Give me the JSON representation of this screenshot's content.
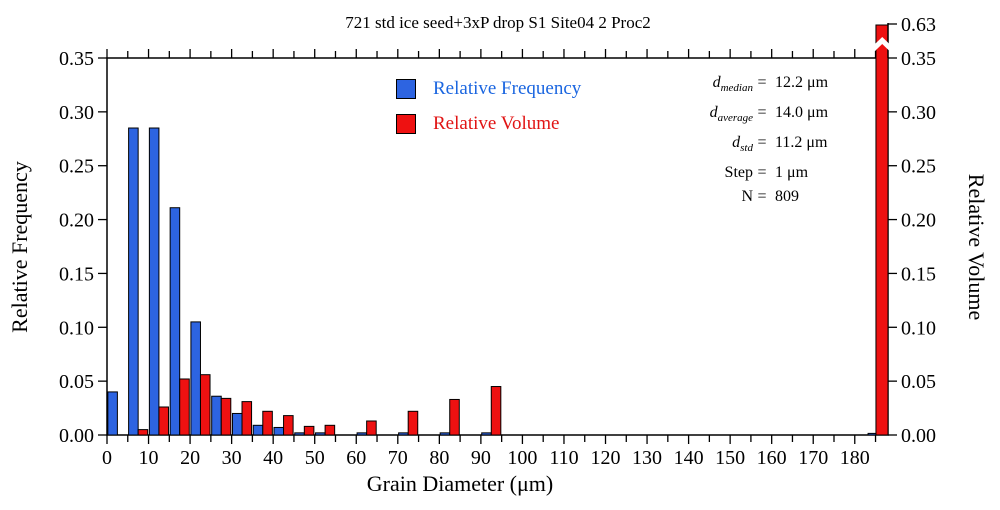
{
  "title": "721 std ice seed+3xP drop S1 Site04 2 Proc2",
  "axes": {
    "x_label": "Grain Diameter (μm)",
    "y_left_label": "Relative Frequency",
    "y_right_label": "Relative Volume"
  },
  "legend": {
    "items": [
      {
        "label": "Relative Frequency",
        "color": "#2d64e1",
        "text_color": "#1b66e0"
      },
      {
        "label": "Relative Volume",
        "color": "#ee1111",
        "text_color": "#e11414"
      }
    ]
  },
  "stats": {
    "lines": [
      {
        "name": "d",
        "name_style": "italic",
        "sub": "median",
        "eq": "=",
        "value": "12.2 μm"
      },
      {
        "name": "d",
        "name_style": "italic",
        "sub": "average",
        "eq": "=",
        "value": "14.0 μm"
      },
      {
        "name": "d",
        "name_style": "italic",
        "sub": "std",
        "eq": "=",
        "value": "11.2 μm"
      },
      {
        "name": "Step",
        "name_style": "roman",
        "sub": "",
        "eq": "=",
        "value": "1 μm"
      },
      {
        "name": "N",
        "name_style": "roman",
        "sub": "",
        "eq": "=",
        "value": "809"
      }
    ]
  },
  "colors": {
    "frequency": "#2d64e1",
    "volume": "#ee1111",
    "axis": "#000000",
    "background": "#ffffff"
  },
  "chart_data": {
    "type": "bar",
    "title": "721 std ice seed+3xP drop S1 Site04 2 Proc2",
    "xlabel": "Grain Diameter (μm)",
    "ylabel_left": "Relative Frequency",
    "ylabel_right": "Relative Volume",
    "xlim": [
      0,
      188
    ],
    "ylim": [
      0,
      0.35
    ],
    "bin_width": 5,
    "x_major_step": 10,
    "x_minor_step": 5,
    "x_tick_max": 185,
    "x_major_ticks": [
      0,
      10,
      20,
      30,
      40,
      50,
      60,
      70,
      80,
      90,
      100,
      110,
      120,
      130,
      140,
      150,
      160,
      170,
      180
    ],
    "y_ticks": [
      0,
      0.05,
      0.1,
      0.15,
      0.2,
      0.25,
      0.3,
      0.35
    ],
    "grid": false,
    "legend_position": "upper-center",
    "series_names": [
      "Relative Frequency",
      "Relative Volume"
    ],
    "bins": [
      {
        "x": 0,
        "freq": 0.04,
        "vol": 0.0
      },
      {
        "x": 5,
        "freq": 0.285,
        "vol": 0.005
      },
      {
        "x": 10,
        "freq": 0.285,
        "vol": 0.026
      },
      {
        "x": 15,
        "freq": 0.211,
        "vol": 0.052
      },
      {
        "x": 20,
        "freq": 0.105,
        "vol": 0.056
      },
      {
        "x": 25,
        "freq": 0.036,
        "vol": 0.034
      },
      {
        "x": 30,
        "freq": 0.02,
        "vol": 0.031
      },
      {
        "x": 35,
        "freq": 0.009,
        "vol": 0.022
      },
      {
        "x": 40,
        "freq": 0.007,
        "vol": 0.018
      },
      {
        "x": 45,
        "freq": 0.002,
        "vol": 0.008
      },
      {
        "x": 50,
        "freq": 0.002,
        "vol": 0.009
      },
      {
        "x": 60,
        "freq": 0.002,
        "vol": 0.013
      },
      {
        "x": 70,
        "freq": 0.002,
        "vol": 0.022
      },
      {
        "x": 80,
        "freq": 0.002,
        "vol": 0.033
      },
      {
        "x": 90,
        "freq": 0.002,
        "vol": 0.045
      }
    ],
    "overflow_bin": {
      "x": 183.2,
      "freq": 0.0015,
      "vol": 0.63,
      "axis_broken": true
    },
    "right_axis_break_value": 0.63,
    "annotations": [
      "d_median = 12.2 μm",
      "d_average = 14.0 μm",
      "d_std = 11.2 μm",
      "Step = 1 μm",
      "N = 809"
    ]
  }
}
